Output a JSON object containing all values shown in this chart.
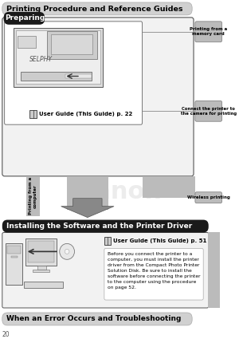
{
  "title_bar_text": "Printing Procedure and Reference Guides",
  "preparing_text": "Preparing",
  "user_guide_22": "User Guide (This Guide) p. 22",
  "user_guide_51": "User Guide (This Guide) p. 51",
  "install_bar_text": "Installing the Software and the Printer Driver",
  "install_body": "Before you connect the printer to a\ncomputer, you must install the printer\ndriver from the Compact Photo Printer\nSolution Disk. Be sure to install the\nsoftware before connecting the printer\nto the computer using the procedure\non page 52.",
  "bottom_bar_text": "When an Error Occurs and Troubleshooting",
  "page_num": "20",
  "label_print_memory": "Printing from a\nmemory card",
  "label_connect_camera": "Connect the printer to\nthe camera for printing",
  "label_wireless": "Wireless printing",
  "label_print_computer": "Printing from a\ncomputer",
  "color_white": "#ffffff",
  "color_light_gray": "#e8e8e8",
  "color_mid_gray": "#bbbbbb",
  "color_dark_gray": "#888888",
  "color_black": "#000000",
  "color_black_bar": "#1a1a1a",
  "color_title_bg": "#d0d0d0",
  "color_body_bg": "#f2f2f2",
  "color_right_tab": "#999999",
  "color_arrow": "#888888"
}
